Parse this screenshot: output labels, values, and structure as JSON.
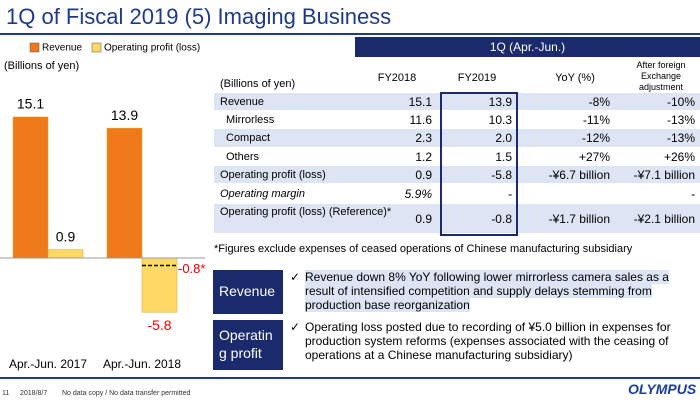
{
  "header": {
    "title": "1Q of Fiscal 2019 (5) Imaging Business"
  },
  "chart_data": {
    "type": "bar",
    "unit_label": "(Billions of yen)",
    "categories": [
      "Apr.-Jun. 2017",
      "Apr.-Jun. 2018"
    ],
    "series": [
      {
        "name": "Revenue",
        "color": "#f07a1a",
        "values": [
          15.1,
          13.9
        ]
      },
      {
        "name": "Operating profit (loss)",
        "color": "#ffd966",
        "values": [
          0.9,
          -5.8
        ]
      }
    ],
    "ylim": [
      -6.5,
      17
    ],
    "reference": {
      "value": -0.8,
      "label": "-0.8*"
    }
  },
  "table": {
    "title": "1Q (Apr.-Jun.)",
    "columns": [
      "(Billions of yen)",
      "FY2018",
      "FY2019",
      "YoY (%)",
      "After foreign Exchange adjustment"
    ],
    "rows": [
      [
        "Revenue",
        "15.1",
        "13.9",
        "-8%",
        "-10%"
      ],
      [
        "Mirrorless",
        "11.6",
        "10.3",
        "-11%",
        "-13%"
      ],
      [
        "Compact",
        "2.3",
        "2.0",
        "-12%",
        "-13%"
      ],
      [
        "Others",
        "1.2",
        "1.5",
        "+27%",
        "+26%"
      ],
      [
        "Operating profit (loss)",
        "0.9",
        "-5.8",
        "-¥6.7 billion",
        "-¥7.1 billion"
      ],
      [
        "Operating margin",
        "5.9%",
        "-",
        null,
        "-"
      ],
      [
        "Operating profit (loss) (Reference)*",
        "0.9",
        "-0.8",
        "-¥1.7 billion",
        "-¥2.1 billion"
      ]
    ],
    "footnote": "*Figures exclude expenses of ceased operations of Chinese manufacturing subsidiary"
  },
  "notes": [
    {
      "label": "Revenue",
      "text": "Revenue down 8% YoY following lower mirrorless camera sales as a result of intensified competition and supply delays stemming from production base reorganization"
    },
    {
      "label": "Operating profit",
      "text": "Operating loss posted due to recording of ¥5.0 billion in expenses for production system reforms (expenses associated with the ceasing of operations at a Chinese manufacturing subsidiary)"
    }
  ],
  "footer": {
    "page": "11",
    "date": "2018/8/7",
    "notice": "No data copy / No data transfer permitted",
    "logo": "OLYMPUS"
  }
}
